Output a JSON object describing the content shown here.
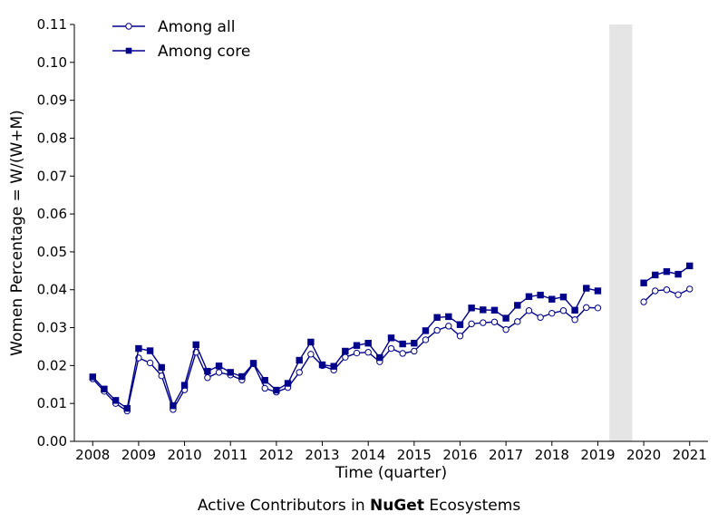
{
  "caption": {
    "prefix": "Active Contributors in ",
    "emphasis": "NuGet",
    "suffix": " Ecosystems"
  },
  "chart_data": {
    "type": "line",
    "xlabel": "Time (quarter)",
    "ylabel": "Women Percentage = W/(W+M)",
    "xlim": [
      2007.6,
      2021.4
    ],
    "ylim": [
      0,
      0.11
    ],
    "xticks": [
      2008,
      2009,
      2010,
      2011,
      2012,
      2013,
      2014,
      2015,
      2016,
      2017,
      2018,
      2019,
      2020,
      2021
    ],
    "yticks": [
      "0.00",
      "0.01",
      "0.02",
      "0.03",
      "0.04",
      "0.05",
      "0.06",
      "0.07",
      "0.08",
      "0.09",
      "0.10",
      "0.11"
    ],
    "grid": false,
    "legend_position": "top-left",
    "shaded_region": {
      "x": [
        2019.25,
        2019.75
      ],
      "color": "#e5e5e5"
    },
    "colors": {
      "line": "#00008b",
      "shade": "#e5e5e5"
    },
    "series": [
      {
        "name": "Among all",
        "marker": "circle-open",
        "segments": [
          {
            "x": [
              2008.0,
              2008.25,
              2008.5,
              2008.75,
              2009.0,
              2009.25,
              2009.5,
              2009.75,
              2010.0,
              2010.25,
              2010.5,
              2010.75,
              2011.0,
              2011.25,
              2011.5,
              2011.75,
              2012.0,
              2012.25,
              2012.5,
              2012.75,
              2013.0,
              2013.25,
              2013.5,
              2013.75,
              2014.0,
              2014.25,
              2014.5,
              2014.75,
              2015.0,
              2015.25,
              2015.5,
              2015.75,
              2016.0,
              2016.25,
              2016.5,
              2016.75,
              2017.0,
              2017.25,
              2017.5,
              2017.75,
              2018.0,
              2018.25,
              2018.5,
              2018.75,
              2019.0
            ],
            "y": [
              0.0165,
              0.0132,
              0.01,
              0.008,
              0.022,
              0.0207,
              0.0173,
              0.0084,
              0.0136,
              0.0235,
              0.0168,
              0.0182,
              0.0175,
              0.0162,
              0.0205,
              0.014,
              0.013,
              0.0142,
              0.0182,
              0.023,
              0.02,
              0.0188,
              0.0222,
              0.0233,
              0.0235,
              0.021,
              0.0245,
              0.0232,
              0.0238,
              0.0268,
              0.0293,
              0.0304,
              0.0278,
              0.031,
              0.0313,
              0.0315,
              0.0295,
              0.0316,
              0.0345,
              0.0327,
              0.0338,
              0.0345,
              0.0321,
              0.0353,
              0.0352
            ]
          },
          {
            "x": [
              2020.0,
              2020.25,
              2020.5,
              2020.75,
              2021.0
            ],
            "y": [
              0.0368,
              0.0397,
              0.04,
              0.0387,
              0.0402
            ]
          }
        ]
      },
      {
        "name": "Among core",
        "marker": "square-filled",
        "segments": [
          {
            "x": [
              2008.0,
              2008.25,
              2008.5,
              2008.75,
              2009.0,
              2009.25,
              2009.5,
              2009.75,
              2010.0,
              2010.25,
              2010.5,
              2010.75,
              2011.0,
              2011.25,
              2011.5,
              2011.75,
              2012.0,
              2012.25,
              2012.5,
              2012.75,
              2013.0,
              2013.25,
              2013.5,
              2013.75,
              2014.0,
              2014.25,
              2014.5,
              2014.75,
              2015.0,
              2015.25,
              2015.5,
              2015.75,
              2016.0,
              2016.25,
              2016.5,
              2016.75,
              2017.0,
              2017.25,
              2017.5,
              2017.75,
              2018.0,
              2018.25,
              2018.5,
              2018.75,
              2019.0
            ],
            "y": [
              0.017,
              0.0138,
              0.0108,
              0.0087,
              0.0245,
              0.0239,
              0.0195,
              0.0094,
              0.0148,
              0.0255,
              0.0185,
              0.0199,
              0.0182,
              0.0171,
              0.0206,
              0.0161,
              0.0135,
              0.0153,
              0.0214,
              0.0262,
              0.0202,
              0.0198,
              0.0238,
              0.0253,
              0.0259,
              0.0221,
              0.0273,
              0.0257,
              0.0259,
              0.0292,
              0.0327,
              0.0329,
              0.0308,
              0.0352,
              0.0347,
              0.0346,
              0.0325,
              0.0359,
              0.0382,
              0.0386,
              0.0375,
              0.0381,
              0.0346,
              0.0404,
              0.0397
            ]
          },
          {
            "x": [
              2020.0,
              2020.25,
              2020.5,
              2020.75,
              2021.0
            ],
            "y": [
              0.0418,
              0.0439,
              0.0448,
              0.0441,
              0.0463
            ]
          }
        ]
      }
    ]
  }
}
